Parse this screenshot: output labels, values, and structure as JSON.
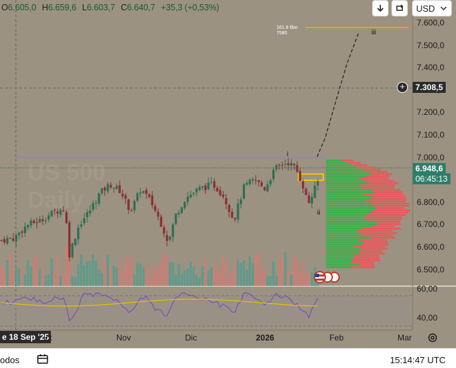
{
  "legend": {
    "open_label": "O",
    "open": "6.605,0",
    "high_label": "H",
    "high": "6.659,6",
    "low_label": "L",
    "low": "6.603,7",
    "close_label": "C",
    "close": "6.640,7",
    "change": "+35,3 (+0,53%)"
  },
  "toolbar": {
    "currency": "USD",
    "arrow_icon": "arrow-down-icon",
    "replay_icon": "replay-icon"
  },
  "watermark": {
    "symbol": "US 500",
    "interval": "Daily"
  },
  "price_axis": [
    "7.600,0",
    "7.500,0",
    "7.400,0",
    "7.300,0",
    "7.200,0",
    "7.100,0",
    "7.000,0",
    "6.900,0",
    "6.800,0",
    "6.700,0",
    "6.600,0",
    "6.500,0"
  ],
  "crosshair_price": "7.308,5",
  "last_price": "6.948,6",
  "countdown": "06:45:13",
  "rsi_axis": [
    "60,00",
    "40,00"
  ],
  "fib_label_1": "161.8 fibo",
  "fib_label_2": "7580",
  "wave_labels": {
    "i": "i",
    "ii": "ii",
    "iii": "iii"
  },
  "time_axis": {
    "crosshair_date": "e 18 Sep '25",
    "oct": "ct",
    "nov": "Nov",
    "dic": "Dic",
    "y2026": "2026",
    "feb": "Feb",
    "mar": "Mar"
  },
  "bottom": {
    "left": "odos",
    "clock": "15:14:47 UTC"
  },
  "colors": {
    "up": "#2e7d4a",
    "down": "#8b2a2a",
    "bg": "#9b9282",
    "fib": "#e8a317",
    "last_price": "#2e7d6a"
  }
}
